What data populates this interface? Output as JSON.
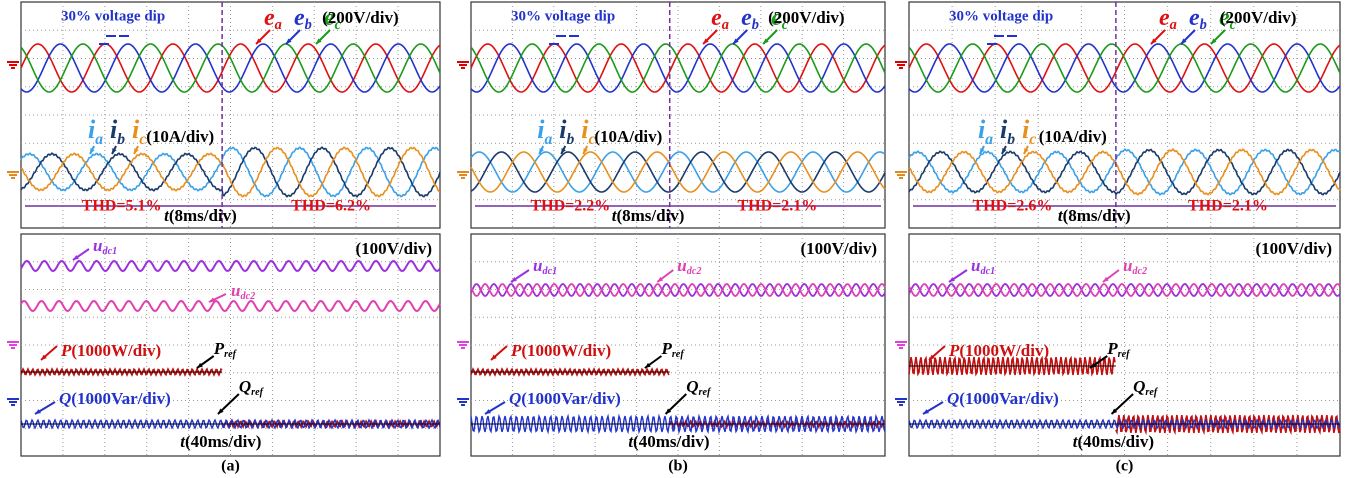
{
  "panels": [
    {
      "caption": "(a)",
      "top": {
        "dip": "30% voltage dip",
        "voltages": [
          {
            "base": "e",
            "sub": "a"
          },
          {
            "base": "e",
            "sub": "b"
          },
          {
            "base": "e",
            "sub": "c"
          }
        ],
        "voltage_scale": "(200V/div)",
        "currents": [
          {
            "base": "i",
            "sub": "a"
          },
          {
            "base": "i",
            "sub": "b"
          },
          {
            "base": "i",
            "sub": "c"
          }
        ],
        "current_scale": "(10A/div)",
        "thd_before": "THD=5.1%",
        "time": {
          "base": "t",
          "rest": "(8ms/div)"
        },
        "thd_after": "THD=6.2%"
      },
      "bottom": {
        "scale": "(100V/div)",
        "udc1": {
          "base": "u",
          "sub": "dc1"
        },
        "udc2": {
          "base": "u",
          "sub": "dc2"
        },
        "p": {
          "base": "P",
          "rest": "(1000W/div)"
        },
        "pref": {
          "base": "P",
          "sub": "ref"
        },
        "q": {
          "base": "Q",
          "rest": "(1000Var/div)"
        },
        "qref": {
          "base": "Q",
          "sub": "ref"
        },
        "time": {
          "base": "t",
          "rest": "(40ms/div)"
        }
      }
    },
    {
      "caption": "(b)",
      "top": {
        "dip": "30% voltage dip",
        "voltages": [
          {
            "base": "e",
            "sub": "a"
          },
          {
            "base": "e",
            "sub": "b"
          },
          {
            "base": "e",
            "sub": "c"
          }
        ],
        "voltage_scale": "(200V/div)",
        "currents": [
          {
            "base": "i",
            "sub": "a"
          },
          {
            "base": "i",
            "sub": "b"
          },
          {
            "base": "i",
            "sub": "c"
          }
        ],
        "current_scale": "(10A/div)",
        "thd_before": "THD=2.2%",
        "time": {
          "base": "t",
          "rest": "(8ms/div)"
        },
        "thd_after": "THD=2.1%"
      },
      "bottom": {
        "scale": "(100V/div)",
        "udc1": {
          "base": "u",
          "sub": "dc1"
        },
        "udc2": {
          "base": "u",
          "sub": "dc2"
        },
        "p": {
          "base": "P",
          "rest": "(1000W/div)"
        },
        "pref": {
          "base": "P",
          "sub": "ref"
        },
        "q": {
          "base": "Q",
          "rest": "(1000Var/div)"
        },
        "qref": {
          "base": "Q",
          "sub": "ref"
        },
        "time": {
          "base": "t",
          "rest": "(40ms/div)"
        }
      }
    },
    {
      "caption": "(c)",
      "top": {
        "dip": "30% voltage dip",
        "voltages": [
          {
            "base": "e",
            "sub": "a"
          },
          {
            "base": "e",
            "sub": "b"
          },
          {
            "base": "e",
            "sub": "c"
          }
        ],
        "voltage_scale": "(200V/div)",
        "currents": [
          {
            "base": "i",
            "sub": "a"
          },
          {
            "base": "i",
            "sub": "b"
          },
          {
            "base": "i",
            "sub": "c"
          }
        ],
        "current_scale": "(10A/div)",
        "thd_before": "THD=2.6%",
        "time": {
          "base": "t",
          "rest": "(8ms/div)"
        },
        "thd_after": "THD=2.1%"
      },
      "bottom": {
        "scale": "(100V/div)",
        "udc1": {
          "base": "u",
          "sub": "dc1"
        },
        "udc2": {
          "base": "u",
          "sub": "dc2"
        },
        "p": {
          "base": "P",
          "rest": "(1000W/div)"
        },
        "pref": {
          "base": "P",
          "sub": "ref"
        },
        "q": {
          "base": "Q",
          "rest": "(1000Var/div)"
        },
        "qref": {
          "base": "Q",
          "sub": "ref"
        },
        "time": {
          "base": "t",
          "rest": "(40ms/div)"
        }
      }
    }
  ]
}
